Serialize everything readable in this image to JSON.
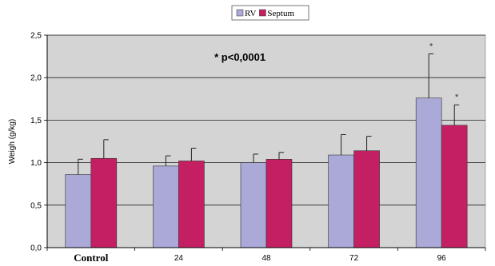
{
  "chart_data": {
    "type": "bar",
    "categories": [
      "Control",
      "24",
      "48",
      "72",
      "96"
    ],
    "series": [
      {
        "name": "RV",
        "color": "#aaa9d8",
        "values": [
          0.86,
          0.96,
          1.0,
          1.09,
          1.76
        ],
        "error_upper": [
          1.04,
          1.08,
          1.1,
          1.33,
          2.28
        ]
      },
      {
        "name": "Septum",
        "color": "#c51f63",
        "values": [
          1.05,
          1.02,
          1.04,
          1.14,
          1.44
        ],
        "error_upper": [
          1.27,
          1.17,
          1.12,
          1.31,
          1.68
        ]
      }
    ],
    "significance_marker": [
      "",
      "",
      "",
      "",
      "*"
    ],
    "annotation": "* p<0,0001",
    "xlabel": "",
    "ylabel": "Weigh (g/kg)",
    "ylim": [
      0,
      2.5
    ],
    "yticks": [
      "0,0",
      "0,5",
      "1,0",
      "1,5",
      "2,0",
      "2,5"
    ],
    "grid": true,
    "legend_position": "top-center",
    "plot_background": "#d4d4d4"
  }
}
